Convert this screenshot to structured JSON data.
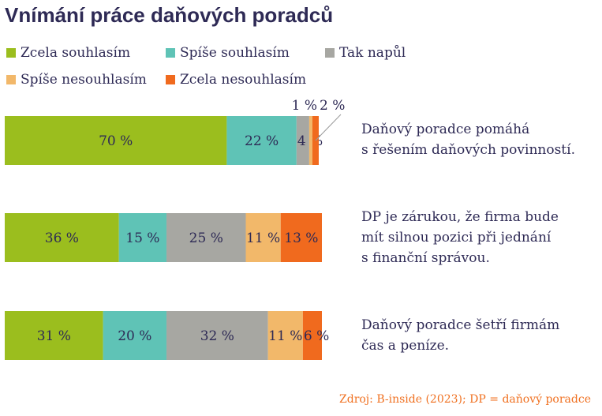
{
  "title": "Vnímání práce daňových poradců",
  "source": "Zdroj: B-inside (2023); DP = daňový poradce",
  "colors": {
    "title": "#2e2a55",
    "text": "#2e2a55",
    "source": "#f07020"
  },
  "chart_data": {
    "type": "bar",
    "orientation": "horizontal",
    "stacked": true,
    "xlim": [
      0,
      100
    ],
    "grid": false,
    "legend_position": "top",
    "categories": [
      "Daňový poradce pomáhá s řešením daňových povinností.",
      "DP je zárukou, že firma bude mít silnou pozici při jednání s finanční správou.",
      "Daňový poradce šetří firmám čas a peníze."
    ],
    "category_lines": [
      [
        "Daňový poradce pomáhá",
        "s řešením daňových povinností."
      ],
      [
        "DP je zárukou, že firma bude",
        "mít silnou pozici při jednání",
        "s finanční správou."
      ],
      [
        "Daňový poradce šetří firmám",
        "čas a peníze."
      ]
    ],
    "series": [
      {
        "name": "Zcela souhlasím",
        "color": "#9bbe1e",
        "values": [
          70,
          36,
          31
        ],
        "labels": [
          "70 %",
          "36 %",
          "31 %"
        ]
      },
      {
        "name": "Spíše souhlasím",
        "color": "#5fc3b6",
        "values": [
          22,
          15,
          20
        ],
        "labels": [
          "22 %",
          "15 %",
          "20 %"
        ]
      },
      {
        "name": "Tak napůl",
        "color": "#a7a7a2",
        "values": [
          4,
          25,
          32
        ],
        "labels": [
          "4 %",
          "25 %",
          "32 %"
        ]
      },
      {
        "name": "Spíše nesouhlasím",
        "color": "#f2b86a",
        "values": [
          1,
          11,
          11
        ],
        "labels": [
          "1 %",
          "11 %",
          "11 %"
        ]
      },
      {
        "name": "Zcela nesouhlasím",
        "color": "#f06a1e",
        "values": [
          2,
          13,
          6
        ],
        "labels": [
          "2 %",
          "13 %",
          "6 %"
        ]
      }
    ]
  }
}
